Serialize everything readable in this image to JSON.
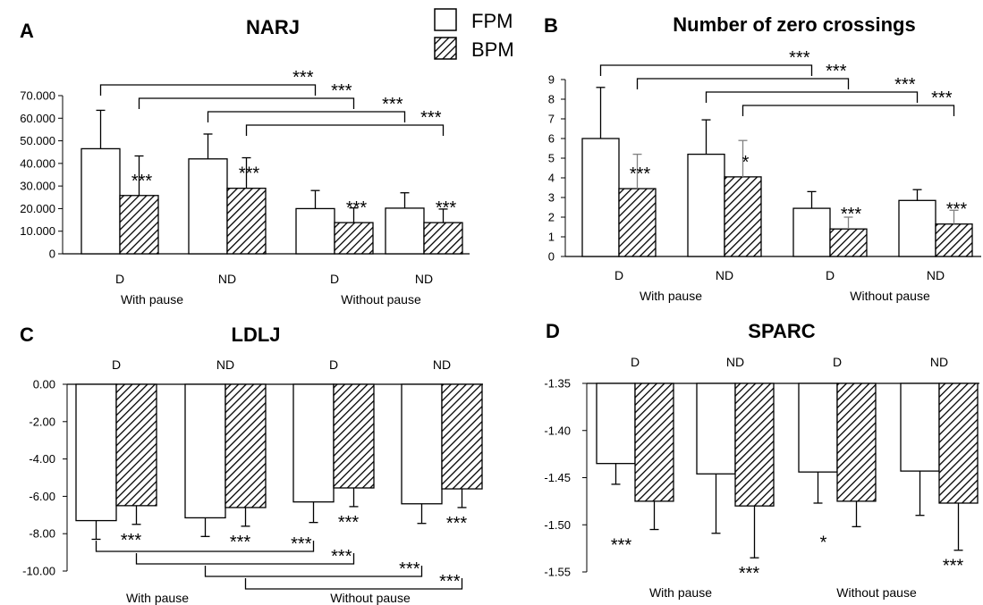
{
  "legend": [
    {
      "name": "FPM",
      "fill": "white"
    },
    {
      "name": "BPM",
      "fill": "hatch"
    }
  ],
  "colors": {
    "bar_stroke": "#000000",
    "hatch_line": "#000000",
    "error_bar_b": "#808080"
  },
  "chart_data": [
    {
      "panel": "A",
      "title": "NARJ",
      "type": "bar",
      "groups": [
        "With pause",
        "Without pause"
      ],
      "categories": [
        "D",
        "ND",
        "D",
        "ND"
      ],
      "ylim": [
        0,
        70
      ],
      "yticks": [
        0,
        10,
        20,
        30,
        40,
        50,
        60,
        70
      ],
      "yticklabels": [
        "0",
        "10.000",
        "20.000",
        "30.000",
        "40.000",
        "50.000",
        "60.000",
        "70.000"
      ],
      "series": [
        {
          "name": "FPM",
          "values": [
            46.5,
            42.0,
            20.0,
            20.2
          ],
          "errors": [
            17.0,
            11.0,
            8.0,
            6.8
          ]
        },
        {
          "name": "BPM",
          "values": [
            25.8,
            29.0,
            13.8,
            13.8
          ],
          "errors": [
            17.5,
            13.5,
            6.5,
            6.0
          ]
        }
      ],
      "significance": [
        "***",
        "***",
        "***",
        "***"
      ],
      "brackets": [
        {
          "from": [
            0,
            0
          ],
          "to": [
            2,
            0
          ],
          "label": "***"
        },
        {
          "from": [
            0,
            1
          ],
          "to": [
            2,
            1
          ],
          "label": "***"
        },
        {
          "from": [
            1,
            0
          ],
          "to": [
            3,
            0
          ],
          "label": "***"
        },
        {
          "from": [
            1,
            1
          ],
          "to": [
            3,
            1
          ],
          "label": "***"
        }
      ]
    },
    {
      "panel": "B",
      "title": "Number of zero crossings",
      "type": "bar",
      "groups": [
        "With pause",
        "Without pause"
      ],
      "categories": [
        "D",
        "ND",
        "D",
        "ND"
      ],
      "ylim": [
        0,
        9
      ],
      "yticks": [
        0,
        1,
        2,
        3,
        4,
        5,
        6,
        7,
        8,
        9
      ],
      "yticklabels": [
        "0",
        "1",
        "2",
        "3",
        "4",
        "5",
        "6",
        "7",
        "8",
        "9"
      ],
      "series": [
        {
          "name": "FPM",
          "values": [
            6.0,
            5.2,
            2.45,
            2.85
          ],
          "errors": [
            2.6,
            1.75,
            0.85,
            0.55
          ]
        },
        {
          "name": "BPM",
          "values": [
            3.45,
            4.05,
            1.4,
            1.65
          ],
          "errors": [
            1.75,
            1.85,
            0.6,
            0.7
          ]
        }
      ],
      "significance": [
        "***",
        "*",
        "***",
        "***"
      ],
      "brackets": [
        {
          "from": [
            0,
            0
          ],
          "to": [
            2,
            0
          ],
          "label": "***"
        },
        {
          "from": [
            0,
            1
          ],
          "to": [
            2,
            1
          ],
          "label": "***"
        },
        {
          "from": [
            1,
            0
          ],
          "to": [
            3,
            0
          ],
          "label": "***"
        },
        {
          "from": [
            1,
            1
          ],
          "to": [
            3,
            1
          ],
          "label": "***"
        }
      ]
    },
    {
      "panel": "C",
      "title": "LDLJ",
      "type": "bar",
      "groups": [
        "With pause",
        "Without pause"
      ],
      "categories": [
        "D",
        "ND",
        "D",
        "ND"
      ],
      "ylim": [
        -10,
        0
      ],
      "yticks": [
        0,
        -2,
        -4,
        -6,
        -8,
        -10
      ],
      "yticklabels": [
        "0.00",
        "-2.00",
        "-4.00",
        "-6.00",
        "-8.00",
        "-10.00"
      ],
      "series": [
        {
          "name": "FPM",
          "values": [
            -7.3,
            -7.15,
            -6.3,
            -6.4
          ],
          "errors": [
            1.0,
            1.0,
            1.1,
            1.05
          ]
        },
        {
          "name": "BPM",
          "values": [
            -6.5,
            -6.6,
            -5.55,
            -5.6
          ],
          "errors": [
            1.0,
            1.0,
            1.0,
            1.0
          ]
        }
      ],
      "significance": [
        "***",
        "***",
        "***",
        "***"
      ],
      "brackets": [
        {
          "from": [
            0,
            0
          ],
          "to": [
            2,
            0
          ],
          "label": "***"
        },
        {
          "from": [
            0,
            1
          ],
          "to": [
            2,
            1
          ],
          "label": "***"
        },
        {
          "from": [
            1,
            0
          ],
          "to": [
            3,
            0
          ],
          "label": "***"
        },
        {
          "from": [
            1,
            1
          ],
          "to": [
            3,
            1
          ],
          "label": "***"
        }
      ]
    },
    {
      "panel": "D",
      "title": "SPARC",
      "type": "bar",
      "groups": [
        "With pause",
        "Without pause"
      ],
      "categories": [
        "D",
        "ND",
        "D",
        "ND"
      ],
      "ylim": [
        -1.55,
        -1.35
      ],
      "yticks": [
        -1.35,
        -1.4,
        -1.45,
        -1.5,
        -1.55
      ],
      "yticklabels": [
        "-1.35",
        "-1.40",
        "-1.45",
        "-1.50",
        "-1.55"
      ],
      "series": [
        {
          "name": "FPM",
          "values": [
            -1.435,
            -1.446,
            -1.444,
            -1.443
          ],
          "errors": [
            0.022,
            0.063,
            0.033,
            0.047
          ]
        },
        {
          "name": "BPM",
          "values": [
            -1.475,
            -1.48,
            -1.475,
            -1.477
          ],
          "errors": [
            0.03,
            0.055,
            0.027,
            0.05
          ]
        }
      ],
      "significance": [
        "***",
        "***",
        "*",
        "***"
      ]
    }
  ]
}
